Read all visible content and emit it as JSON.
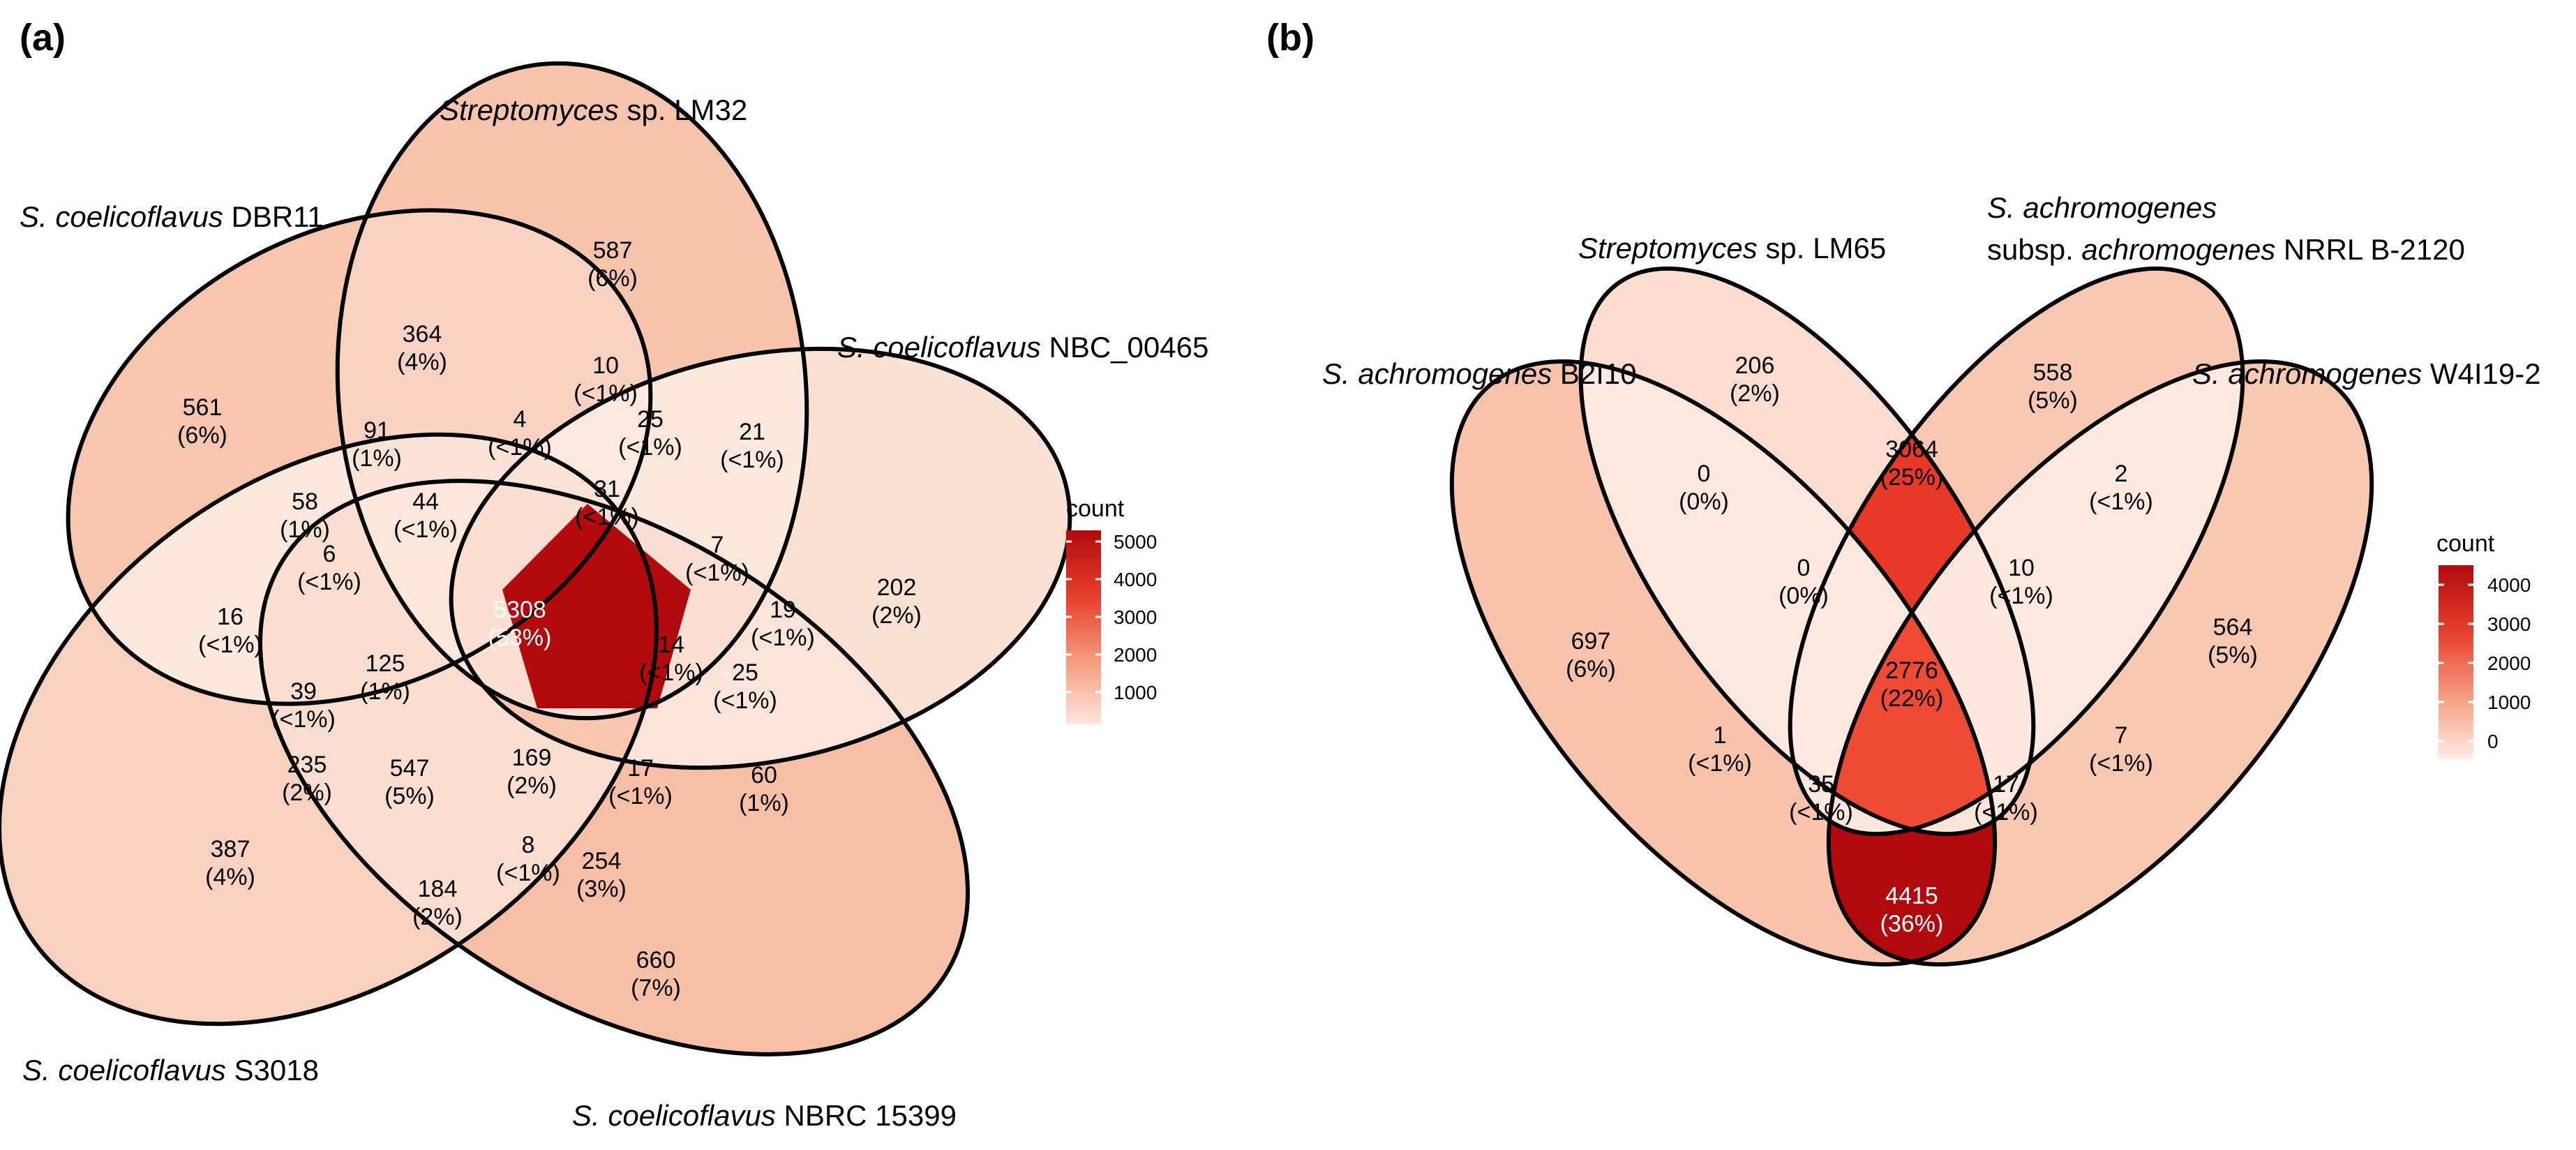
{
  "panel_a": {
    "tag": "(a)",
    "sets": [
      {
        "italic": "S. coelicoflavus",
        "rest": " DBR11"
      },
      {
        "italic": "Streptomyces",
        "rest": " sp. LM32"
      },
      {
        "italic": "S. coelicoflavus",
        "rest": " NBC_00465"
      },
      {
        "italic": "S. coelicoflavus",
        "rest": " NBRC 15399"
      },
      {
        "italic": "S. coelicoflavus",
        "rest": " S3018"
      }
    ],
    "regions": [
      {
        "id": "only-lm32",
        "count": "587",
        "pct": "(6%)",
        "color": "#f8c4ac"
      },
      {
        "id": "only-dbr11",
        "count": "561",
        "pct": "(6%)",
        "color": "#f8c5ae"
      },
      {
        "id": "only-nbc",
        "count": "202",
        "pct": "(2%)",
        "color": "#fbe0d4"
      },
      {
        "id": "only-nbrc",
        "count": "660",
        "pct": "(7%)",
        "color": "#f7bfa6"
      },
      {
        "id": "only-s3018",
        "count": "387",
        "pct": "(4%)",
        "color": "#f9d1bf"
      },
      {
        "id": "dbr11-lm32",
        "count": "364",
        "pct": "(4%)",
        "color": "#fad2c1"
      },
      {
        "id": "lm32-nbc-a",
        "count": "10",
        "pct": "(<1%)",
        "color": "#fde8df"
      },
      {
        "id": "lm32-nbc-b",
        "count": "25",
        "pct": "(<1%)",
        "color": "#fde7dd"
      },
      {
        "id": "nbc-tip",
        "count": "21",
        "pct": "(<1%)",
        "color": "#fde8de"
      },
      {
        "id": "r-91",
        "count": "91",
        "pct": "(1%)",
        "color": "#fce3d8"
      },
      {
        "id": "r-4",
        "count": "4",
        "pct": "(<1%)",
        "color": "#fde9e0"
      },
      {
        "id": "r-58",
        "count": "58",
        "pct": "(1%)",
        "color": "#fce5da"
      },
      {
        "id": "r-44",
        "count": "44",
        "pct": "(<1%)",
        "color": "#fde6dc"
      },
      {
        "id": "r-31",
        "count": "31",
        "pct": "(<1%)",
        "color": "#fde6dc"
      },
      {
        "id": "r-7",
        "count": "7",
        "pct": "(<1%)",
        "color": "#fde9e0"
      },
      {
        "id": "r-6",
        "count": "6",
        "pct": "(<1%)",
        "color": "#fde9e0"
      },
      {
        "id": "core",
        "count": "5308",
        "pct": "(53%)",
        "color": "#b20a0c"
      },
      {
        "id": "r-16",
        "count": "16",
        "pct": "(<1%)",
        "color": "#fde8de"
      },
      {
        "id": "r-14",
        "count": "14",
        "pct": "(<1%)",
        "color": "#fde8df"
      },
      {
        "id": "r-19",
        "count": "19",
        "pct": "(<1%)",
        "color": "#fde8de"
      },
      {
        "id": "r-125",
        "count": "125",
        "pct": "(1%)",
        "color": "#fce1d5"
      },
      {
        "id": "r-39",
        "count": "39",
        "pct": "(<1%)",
        "color": "#fde6dc"
      },
      {
        "id": "r-25b",
        "count": "25",
        "pct": "(<1%)",
        "color": "#fde7dd"
      },
      {
        "id": "r-235",
        "count": "235",
        "pct": "(2%)",
        "color": "#fbdacb"
      },
      {
        "id": "r-547",
        "count": "547",
        "pct": "(5%)",
        "color": "#f8c6af"
      },
      {
        "id": "r-169",
        "count": "169",
        "pct": "(2%)",
        "color": "#fbdfd2"
      },
      {
        "id": "r-17",
        "count": "17",
        "pct": "(<1%)",
        "color": "#fde8de"
      },
      {
        "id": "r-60",
        "count": "60",
        "pct": "(1%)",
        "color": "#fce4da"
      },
      {
        "id": "r-184",
        "count": "184",
        "pct": "(2%)",
        "color": "#fbded0"
      },
      {
        "id": "r-8",
        "count": "8",
        "pct": "(<1%)",
        "color": "#fde9e0"
      },
      {
        "id": "r-254",
        "count": "254",
        "pct": "(3%)",
        "color": "#fbd9ca"
      }
    ],
    "legend": {
      "title": "count",
      "ticks": [
        "5000",
        "4000",
        "3000",
        "2000",
        "1000"
      ]
    }
  },
  "panel_b": {
    "tag": "(b)",
    "sets": [
      {
        "italic": "S. achromogenes",
        "rest": " B2I10"
      },
      {
        "italic": "Streptomyces",
        "rest": " sp. LM65"
      },
      {
        "line1_italic": "S. achromogenes",
        "line2_pre": "subsp. ",
        "line2_italic": "achromogenes",
        "line2_rest": " NRRL B-2120"
      },
      {
        "italic": "S. achromogenes",
        "rest": " W4I19-2"
      }
    ],
    "regions": [
      {
        "id": "only-b2i10",
        "count": "697",
        "pct": "(6%)",
        "color": "#f8c3aa"
      },
      {
        "id": "only-lm65",
        "count": "206",
        "pct": "(2%)",
        "color": "#fcddd0"
      },
      {
        "id": "only-nrrl",
        "count": "558",
        "pct": "(5%)",
        "color": "#f9c8b2"
      },
      {
        "id": "only-w4i",
        "count": "564",
        "pct": "(5%)",
        "color": "#f9c8b1"
      },
      {
        "id": "b-0a",
        "count": "0",
        "pct": "(0%)",
        "color": "#fee8df"
      },
      {
        "id": "b-3064",
        "count": "3064",
        "pct": "(25%)",
        "color": "#e83828"
      },
      {
        "id": "b-2",
        "count": "2",
        "pct": "(<1%)",
        "color": "#fee8df"
      },
      {
        "id": "b-0b",
        "count": "0",
        "pct": "(0%)",
        "color": "#fee8df"
      },
      {
        "id": "b-10",
        "count": "10",
        "pct": "(<1%)",
        "color": "#fee7de"
      },
      {
        "id": "b-2776",
        "count": "2776",
        "pct": "(22%)",
        "color": "#ef4a34"
      },
      {
        "id": "b-1",
        "count": "1",
        "pct": "(<1%)",
        "color": "#fee8df"
      },
      {
        "id": "b-7",
        "count": "7",
        "pct": "(<1%)",
        "color": "#fee8df"
      },
      {
        "id": "b-35",
        "count": "35",
        "pct": "(<1%)",
        "color": "#fee5da"
      },
      {
        "id": "b-17",
        "count": "17",
        "pct": "(<1%)",
        "color": "#fee7dd"
      },
      {
        "id": "b-4415",
        "count": "4415",
        "pct": "(36%)",
        "color": "#b10a0e"
      }
    ],
    "legend": {
      "title": "count",
      "ticks": [
        "4000",
        "3000",
        "2000",
        "1000",
        "0"
      ]
    }
  }
}
